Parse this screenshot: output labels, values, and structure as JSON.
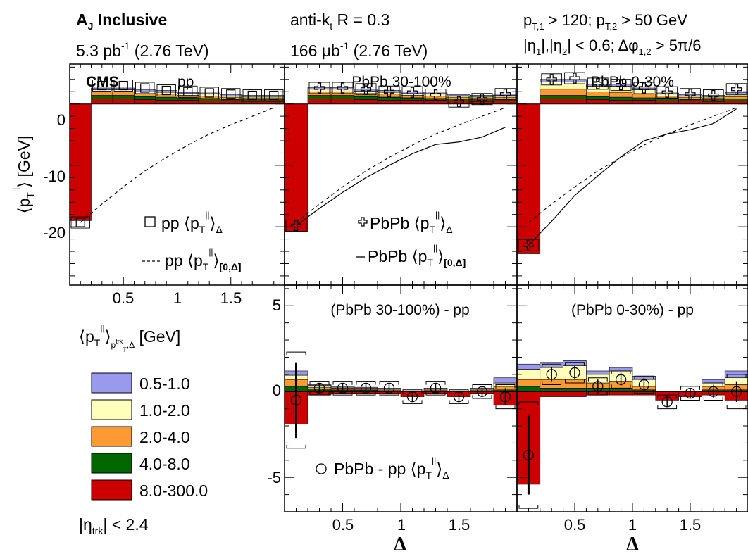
{
  "header": {
    "left_title": "A",
    "left_title_sub": "J",
    "left_title_rest": " Inclusive",
    "left_lumi": "5.3 pb",
    "left_lumi_sup": "-1",
    "left_energy": " (2.76 TeV)",
    "mid_algo": "anti-k",
    "mid_algo_sub": "t",
    "mid_algo_rest": " R = 0.3",
    "mid_lumi": "166 μb",
    "mid_lumi_sup": "-1",
    "mid_energy": " (2.76 TeV)",
    "right_cut1": "p",
    "right_cut1_sub1": "T,1",
    "right_cut1_mid": " > 120; p",
    "right_cut1_sub2": "T,2",
    "right_cut1_end": " > 50 GeV",
    "right_cut2_a": "|η",
    "right_cut2_sub1": "1",
    "right_cut2_b": "|,|η",
    "right_cut2_sub2": "2",
    "right_cut2_c": "| < 0.6; Δφ",
    "right_cut2_sub3": "1,2",
    "right_cut2_d": " > 5π/6"
  },
  "colors": {
    "c0510": "#9999ee",
    "c1020": "#ffffbb",
    "c2040": "#ff9933",
    "c4080": "#006600",
    "c8300": "#cc0000"
  },
  "panels": {
    "pp_label": "pp",
    "cms_label": "CMS",
    "pbpb_periph_label": "PbPb 30-100%",
    "pbpb_central_label": "PbPb 0-30%",
    "diff_periph_label": "(PbPb 30-100%) - pp",
    "diff_central_label": "(PbPb 0-30%) - pp"
  },
  "legend": {
    "pp_delta": "pp",
    "pp_cum": "pp",
    "pbpb_delta": "PbPb",
    "pbpb_cum": "PbPb",
    "diff": "PbPb - pp",
    "ytitle_key": "[GeV]",
    "bins": [
      "0.5-1.0",
      "1.0-2.0",
      "2.0-4.0",
      "4.0-8.0",
      "8.0-300.0"
    ],
    "eta_cut": "|η",
    "eta_sub": "trk",
    "eta_rest": "| < 2.4"
  },
  "axes": {
    "ylabel": "[GeV]",
    "xlabel": "Δ",
    "top_yticks": [
      "0",
      "-10",
      "-20"
    ],
    "bottom_yticks": [
      "5",
      "0",
      "-5"
    ],
    "xticks": [
      "0.5",
      "1",
      "1.5"
    ]
  },
  "chart_data": {
    "type": "bar",
    "xlabel": "Δ",
    "ylabel": "⟨p_T^∥⟩ [GeV]",
    "top_ylim": [
      -29.5,
      6.5
    ],
    "bottom_ylim": [
      -7,
      6.2
    ],
    "xlim": [
      0,
      2
    ],
    "bin_edges": [
      0,
      0.2,
      0.4,
      0.6,
      0.8,
      1.0,
      1.2,
      1.4,
      1.6,
      1.8,
      2.0
    ],
    "series_names": [
      "0.5-1.0",
      "1.0-2.0",
      "2.0-4.0",
      "4.0-8.0",
      "8.0-300.0"
    ],
    "panels": [
      {
        "name": "pp",
        "stack_pos": [
          [
            0,
            0,
            0,
            0,
            0
          ],
          [
            0.3,
            0.3,
            0.6,
            0.6,
            0.8
          ],
          [
            0.3,
            0.3,
            0.6,
            0.6,
            0.8
          ],
          [
            0.3,
            0.3,
            0.5,
            0.5,
            0.7
          ],
          [
            0.3,
            0.3,
            0.5,
            0.5,
            0.6
          ],
          [
            0.2,
            0.3,
            0.4,
            0.4,
            0.6
          ],
          [
            0.2,
            0.3,
            0.4,
            0.4,
            0.5
          ],
          [
            0.2,
            0.2,
            0.3,
            0.3,
            0.5
          ],
          [
            0.2,
            0.2,
            0.3,
            0.3,
            0.4
          ],
          [
            0.2,
            0.2,
            0.3,
            0.3,
            0.4
          ]
        ],
        "stack_neg": [
          -19.0,
          0,
          0,
          0,
          0,
          0,
          0,
          0,
          0,
          0
        ],
        "points": [
          -19.3,
          3.0,
          3.0,
          2.6,
          2.2,
          2.0,
          1.8,
          1.6,
          1.4,
          1.4
        ],
        "cumulative": [
          [
            0.1,
            -19.3
          ],
          [
            0.3,
            -16.3
          ],
          [
            0.5,
            -13.5
          ],
          [
            0.7,
            -10.9
          ],
          [
            0.9,
            -8.7
          ],
          [
            1.1,
            -6.7
          ],
          [
            1.3,
            -4.9
          ],
          [
            1.5,
            -3.4
          ],
          [
            1.7,
            -2.0
          ],
          [
            1.9,
            -0.6
          ]
        ]
      },
      {
        "name": "PbPb 30-100%",
        "stack_pos": [
          [
            0,
            0,
            0,
            0,
            0
          ],
          [
            0.3,
            0.4,
            0.6,
            0.6,
            0.8
          ],
          [
            0.3,
            0.4,
            0.6,
            0.6,
            0.8
          ],
          [
            0.3,
            0.4,
            0.5,
            0.5,
            0.7
          ],
          [
            0.3,
            0.3,
            0.5,
            0.5,
            0.6
          ],
          [
            0.3,
            0.3,
            0.4,
            0.4,
            0.6
          ],
          [
            0.2,
            0.3,
            0.4,
            0.4,
            0.5
          ],
          [
            0.2,
            0.2,
            0.3,
            0.3,
            0.5
          ],
          [
            0.2,
            0.2,
            0.3,
            0.3,
            0.4
          ],
          [
            0.2,
            0.3,
            0.3,
            0.3,
            0.5
          ]
        ],
        "stack_neg": [
          -20.8,
          0,
          0,
          0,
          0,
          0,
          0,
          0,
          0,
          0
        ],
        "points": [
          -19.8,
          2.6,
          2.6,
          2.4,
          2.0,
          1.9,
          1.5,
          0.4,
          0.8,
          1.6
        ],
        "cumulative": [
          [
            0.1,
            -19.8
          ],
          [
            0.3,
            -17.0
          ],
          [
            0.5,
            -14.4
          ],
          [
            0.7,
            -12.0
          ],
          [
            0.9,
            -10.0
          ],
          [
            1.1,
            -8.1
          ],
          [
            1.3,
            -6.6
          ],
          [
            1.5,
            -6.2
          ],
          [
            1.7,
            -5.4
          ],
          [
            1.9,
            -3.8
          ]
        ]
      },
      {
        "name": "PbPb 0-30%",
        "stack_pos": [
          [
            0,
            0,
            0,
            0,
            0
          ],
          [
            0.4,
            1.2,
            1.0,
            0.6,
            0.8
          ],
          [
            0.4,
            1.2,
            1.0,
            0.6,
            0.8
          ],
          [
            0.3,
            0.9,
            0.8,
            0.5,
            0.7
          ],
          [
            0.3,
            1.0,
            0.8,
            0.5,
            0.6
          ],
          [
            0.3,
            0.7,
            0.6,
            0.4,
            0.6
          ],
          [
            0.2,
            0.3,
            0.4,
            0.4,
            0.5
          ],
          [
            0.2,
            0.2,
            0.3,
            0.3,
            0.5
          ],
          [
            0.2,
            0.2,
            0.3,
            0.3,
            0.4
          ],
          [
            0.3,
            0.4,
            0.4,
            0.3,
            0.5
          ]
        ],
        "stack_neg": [
          -24.4,
          0,
          0,
          0,
          0,
          0,
          0,
          0,
          0,
          0
        ],
        "points": [
          -23.0,
          4.0,
          4.2,
          3.3,
          3.1,
          2.6,
          1.9,
          1.6,
          1.4,
          2.4
        ],
        "cumulative": [
          [
            0.1,
            -23.0
          ],
          [
            0.3,
            -19.1
          ],
          [
            0.5,
            -14.9
          ],
          [
            0.7,
            -11.7
          ],
          [
            0.9,
            -8.6
          ],
          [
            1.1,
            -6.0
          ],
          [
            1.3,
            -4.9
          ],
          [
            1.5,
            -4.2
          ],
          [
            1.7,
            -3.2
          ],
          [
            1.9,
            -0.8
          ]
        ]
      },
      {
        "name": "(PbPb 30-100%) - pp",
        "stack_pos": [
          [
            0.25,
            0.25,
            0.4,
            0.3,
            0
          ],
          [
            0.05,
            0.1,
            0.1,
            0.1,
            0.05
          ],
          [
            0.05,
            0.05,
            0.1,
            0.05,
            0.05
          ],
          [
            0.05,
            0.05,
            0.05,
            0.05,
            0.05
          ],
          [
            0.05,
            0.05,
            0.05,
            0.05,
            0
          ],
          [
            0,
            0,
            0,
            0,
            0
          ],
          [
            0.05,
            0.05,
            0.05,
            0.05,
            0
          ],
          [
            0,
            0,
            0,
            0,
            0
          ],
          [
            0.05,
            0.05,
            0.05,
            0.05,
            0
          ],
          [
            0.3,
            0.2,
            0.2,
            0.1,
            0
          ]
        ],
        "stack_neg": [
          -1.9,
          -0.2,
          -0.1,
          -0.1,
          -0.1,
          -0.3,
          -0.1,
          -0.3,
          -0.1,
          -0.8
        ],
        "points": [
          -0.5,
          0.2,
          0.2,
          0.2,
          0.2,
          -0.3,
          0.2,
          -0.3,
          0.0,
          -0.3
        ],
        "stat_err": [
          2.2,
          0.3,
          0.3,
          0.3,
          0.3,
          0.3,
          0.3,
          0.3,
          0.3,
          0.5
        ],
        "sys_err": [
          2.8,
          0.4,
          0.4,
          0.4,
          0.4,
          0.4,
          0.4,
          0.4,
          0.4,
          0.7
        ]
      },
      {
        "name": "(PbPb 0-30%) - pp",
        "stack_pos": [
          [
            0.3,
            0.6,
            0.4,
            0.3,
            0
          ],
          [
            0.3,
            0.7,
            0.5,
            0.2,
            0
          ],
          [
            0.3,
            0.8,
            0.5,
            0.2,
            0
          ],
          [
            0.2,
            0.5,
            0.3,
            0.2,
            0
          ],
          [
            0.2,
            0.6,
            0.4,
            0.2,
            0
          ],
          [
            0.2,
            0.4,
            0.2,
            0.1,
            0
          ],
          [
            0,
            0,
            0,
            0,
            0
          ],
          [
            0,
            0,
            0,
            0,
            0
          ],
          [
            0.2,
            0.2,
            0.2,
            0.1,
            0
          ],
          [
            0.4,
            0.4,
            0.3,
            0.1,
            0
          ]
        ],
        "stack_neg": [
          -5.4,
          -0.3,
          -0.3,
          -0.2,
          -0.2,
          -0.2,
          -0.5,
          -0.3,
          -0.2,
          -0.5
        ],
        "points": [
          -3.7,
          1.0,
          1.1,
          0.3,
          0.7,
          0.4,
          -0.6,
          -0.1,
          0.0,
          0.0
        ],
        "stat_err": [
          2.3,
          0.4,
          0.4,
          0.4,
          0.4,
          0.4,
          0.3,
          0.3,
          0.4,
          0.6
        ],
        "sys_err": [
          3.1,
          0.6,
          0.6,
          0.5,
          0.5,
          0.5,
          0.4,
          0.4,
          0.5,
          1.0
        ]
      }
    ]
  }
}
